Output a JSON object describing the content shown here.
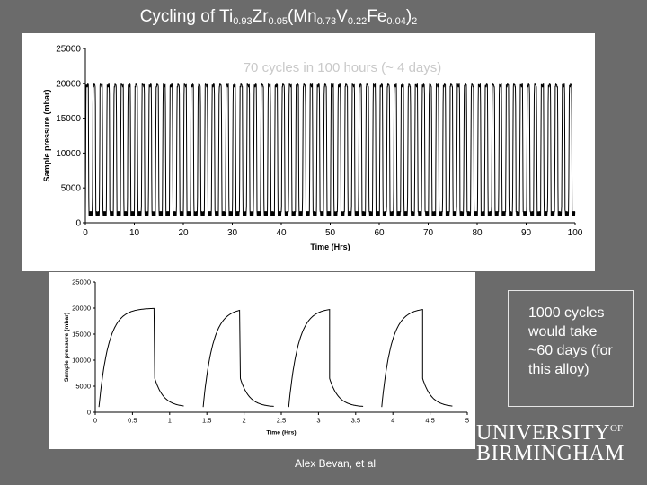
{
  "title": {
    "parts": [
      {
        "t": "Cycling of Ti",
        "sub": false
      },
      {
        "t": "0.93",
        "sub": true
      },
      {
        "t": "Zr",
        "sub": false
      },
      {
        "t": "0.05",
        "sub": true
      },
      {
        "t": "(Mn",
        "sub": false
      },
      {
        "t": "0.73",
        "sub": true
      },
      {
        "t": "V",
        "sub": false
      },
      {
        "t": "0.22",
        "sub": true
      },
      {
        "t": "Fe",
        "sub": false
      },
      {
        "t": "0.04",
        "sub": true
      },
      {
        "t": ")",
        "sub": false
      },
      {
        "t": "2",
        "sub": true
      }
    ]
  },
  "note": {
    "lines": [
      "1000 cycles",
      "would take",
      "~60 days (for",
      "this alloy)"
    ]
  },
  "logo": {
    "university": "UNIVERSITY",
    "of": "OF",
    "birmingham": "BIRMINGHAM"
  },
  "credit": "Alex Bevan, et al",
  "colors": {
    "background": "#6b6b6b",
    "panel": "#ffffff",
    "line": "#000000",
    "annotation": "#c9c9c9"
  },
  "chart_data": [
    {
      "type": "line",
      "annotation": "70 cycles in 100 hours (~ 4 days)",
      "xlabel": "Time (Hrs)",
      "ylabel": "Sample pressure (mbar)",
      "xlim": [
        0,
        100
      ],
      "ylim": [
        0,
        25000
      ],
      "xticks": [
        0,
        10,
        20,
        30,
        40,
        50,
        60,
        70,
        80,
        90,
        100
      ],
      "yticks": [
        0,
        5000,
        10000,
        15000,
        20000,
        25000
      ],
      "cycle_period_hrs": 1.43,
      "high_pressure": 20000,
      "low_pressure": 1000,
      "grid": false
    },
    {
      "type": "line",
      "xlabel": "Time (Hrs)",
      "ylabel": "Sample pressure (mbar)",
      "xlim": [
        0,
        5
      ],
      "ylim": [
        0,
        25000
      ],
      "xticks": [
        0,
        0.5,
        1,
        1.5,
        2,
        2.5,
        3,
        3.5,
        4,
        4.5,
        5
      ],
      "yticks": [
        0,
        5000,
        10000,
        15000,
        20000,
        25000
      ],
      "cycle_starts_hrs": [
        0.05,
        1.45,
        2.6,
        3.85
      ],
      "plateau_end_hrs": [
        0.8,
        1.95,
        3.15,
        4.4
      ],
      "cycle_end_hrs": [
        1.2,
        2.4,
        3.6,
        4.8
      ],
      "high_pressure": 20000,
      "low_pressure": 1000,
      "grid": false
    }
  ]
}
